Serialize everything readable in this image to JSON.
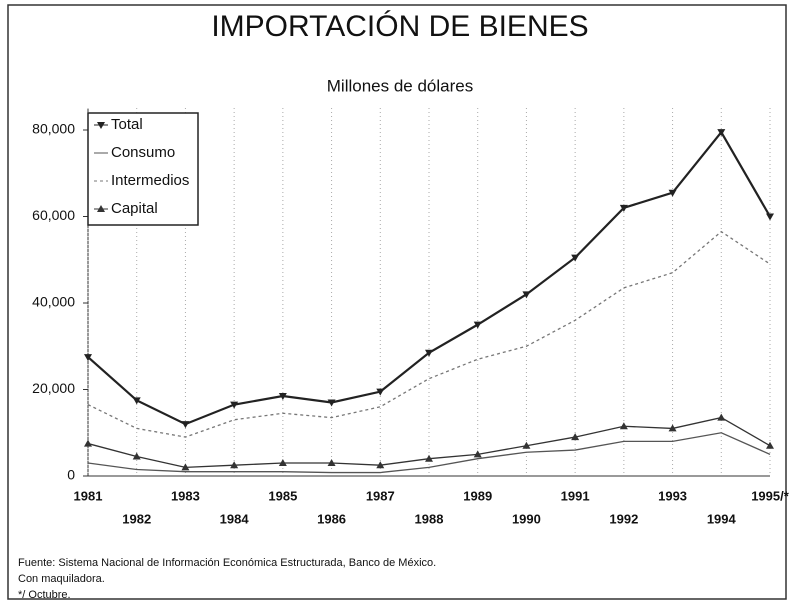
{
  "chart_data": {
    "type": "line",
    "title": "IMPORTACIÓN DE BIENES",
    "subtitle": "Millones de dólares",
    "categories": [
      "1981",
      "1982",
      "1983",
      "1984",
      "1985",
      "1986",
      "1987",
      "1988",
      "1989",
      "1990",
      "1991",
      "1992",
      "1993",
      "1994",
      "1995/*"
    ],
    "series": [
      {
        "name": "Total",
        "color": "#222222",
        "marker": "triangle-down",
        "dash": "none",
        "values": [
          27500,
          17500,
          12000,
          16500,
          18500,
          17000,
          19500,
          28500,
          35000,
          42000,
          50500,
          62000,
          65500,
          79500,
          60000
        ]
      },
      {
        "name": "Consumo",
        "color": "#555555",
        "marker": "none",
        "dash": "none",
        "values": [
          3000,
          1500,
          1000,
          1000,
          1000,
          800,
          800,
          2000,
          4000,
          5500,
          6000,
          8000,
          8000,
          10000,
          5000
        ]
      },
      {
        "name": "Intermedios",
        "color": "#777777",
        "marker": "none",
        "dash": "3 3",
        "values": [
          16500,
          11000,
          9000,
          13000,
          14500,
          13500,
          16000,
          22500,
          27000,
          30000,
          36000,
          43500,
          47000,
          56500,
          49000
        ]
      },
      {
        "name": "Capital",
        "color": "#333333",
        "marker": "triangle-up",
        "dash": "none",
        "values": [
          7500,
          4500,
          2000,
          2500,
          3000,
          3000,
          2500,
          4000,
          5000,
          7000,
          9000,
          11500,
          11000,
          13500,
          7000
        ]
      }
    ],
    "ylim": [
      0,
      80000
    ],
    "yticks": [
      0,
      {
        "value": 20000,
        "label": "20,000"
      },
      {
        "value": 40000,
        "label": "40,000"
      },
      {
        "value": 60000,
        "label": "60,000"
      },
      {
        "value": 80000,
        "label": "80,000"
      }
    ],
    "grid": true,
    "legend": "upper-left",
    "notes": [
      "Fuente: Sistema Nacional de Información Económica Estructurada, Banco de México.",
      "Con maquiladora.",
      "*/ Octubre."
    ]
  }
}
